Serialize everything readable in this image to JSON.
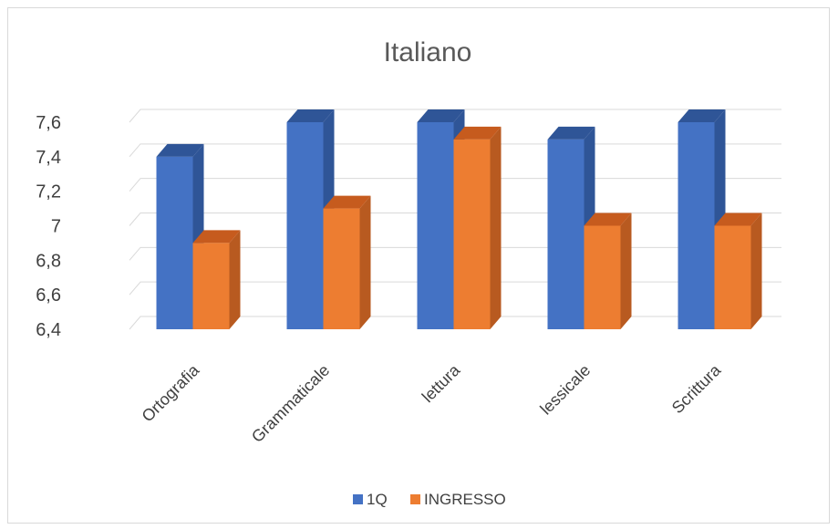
{
  "chart_data": {
    "type": "bar",
    "title": "Italiano",
    "categories": [
      "Ortografia",
      "Grammaticale",
      "lettura",
      "lessicale",
      "Scrittura"
    ],
    "series": [
      {
        "name": "1Q",
        "values": [
          7.4,
          7.6,
          7.6,
          7.5,
          7.6
        ]
      },
      {
        "name": "INGRESSO",
        "values": [
          6.9,
          7.1,
          7.5,
          7.0,
          7.0
        ]
      }
    ],
    "ylim": [
      6.4,
      7.6
    ],
    "yticks": [
      "6,4",
      "6,6",
      "6,8",
      "7",
      "7,2",
      "7,4",
      "7,6"
    ],
    "xlabel": "",
    "ylabel": "",
    "grid": true,
    "legend": "bottom",
    "colors": {
      "series": [
        "#4472C4",
        "#ED7D31"
      ],
      "series_side": [
        "#2F5597",
        "#B85A20"
      ],
      "series_top": [
        "#2F5597",
        "#C65B1E"
      ],
      "grid": "#d9d9d9"
    }
  }
}
